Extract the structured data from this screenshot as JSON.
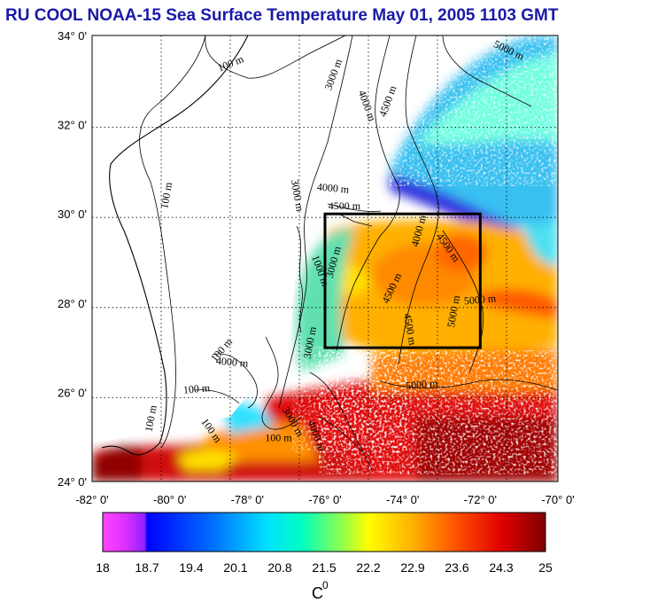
{
  "title": "RU COOL  NOAA-15 Sea Surface Temperature May 01, 2005 1103 GMT",
  "latitude_labels": [
    "34° 0'",
    "32° 0'",
    "30° 0'",
    "28° 0'",
    "26° 0'",
    "24° 0'"
  ],
  "longitude_labels": [
    "-82° 0'",
    "-80° 0'",
    "-78° 0'",
    "-76° 0'",
    "-74° 0'",
    "-72° 0'",
    "-70° 0'"
  ],
  "latitude_values": [
    34,
    32,
    30,
    28,
    26,
    24
  ],
  "longitude_values": [
    -82,
    -80,
    -78,
    -76,
    -74,
    -72,
    -70
  ],
  "contour_labels": [
    {
      "text": "100 m",
      "lon": -78.4,
      "lat": 33.3,
      "rot": -22
    },
    {
      "text": "3000 m",
      "lon": -75.7,
      "lat": 33.1,
      "rot": -70
    },
    {
      "text": "5000 m",
      "lon": -71.3,
      "lat": 33.6,
      "rot": 25
    },
    {
      "text": "4000 m",
      "lon": -75.0,
      "lat": 32.4,
      "rot": 70
    },
    {
      "text": "4500 m",
      "lon": -74.3,
      "lat": 32.5,
      "rot": -70
    },
    {
      "text": "100 m",
      "lon": -80.0,
      "lat": 30.4,
      "rot": -80
    },
    {
      "text": "3000 m",
      "lon": -76.8,
      "lat": 30.4,
      "rot": 80
    },
    {
      "text": "4000 m",
      "lon": -75.8,
      "lat": 30.5,
      "rot": 5
    },
    {
      "text": "4500 m",
      "lon": -75.5,
      "lat": 30.1,
      "rot": 0
    },
    {
      "text": "3000 m",
      "lon": -75.7,
      "lat": 28.9,
      "rot": -75
    },
    {
      "text": "4000 m",
      "lon": -73.5,
      "lat": 29.6,
      "rot": -75
    },
    {
      "text": "4500 m",
      "lon": -72.9,
      "lat": 29.2,
      "rot": 55
    },
    {
      "text": "4500 m",
      "lon": -74.2,
      "lat": 28.3,
      "rot": -65
    },
    {
      "text": "5000 m",
      "lon": -72.0,
      "lat": 28.0,
      "rot": -5
    },
    {
      "text": "5000 m",
      "lon": -72.6,
      "lat": 27.8,
      "rot": -80
    },
    {
      "text": "4500 m",
      "lon": -73.9,
      "lat": 27.4,
      "rot": 80
    },
    {
      "text": "1000 m",
      "lon": -76.2,
      "lat": 28.7,
      "rot": 70
    },
    {
      "text": "3000 m",
      "lon": -76.3,
      "lat": 27.1,
      "rot": -80
    },
    {
      "text": "100 m",
      "lon": -78.6,
      "lat": 26.9,
      "rot": -50
    },
    {
      "text": "4000 m",
      "lon": -78.4,
      "lat": 26.6,
      "rot": 5
    },
    {
      "text": "100 m",
      "lon": -79.3,
      "lat": 26.0,
      "rot": -5
    },
    {
      "text": "100 m",
      "lon": -80.4,
      "lat": 25.4,
      "rot": -80
    },
    {
      "text": "5000 m",
      "lon": -73.5,
      "lat": 26.1,
      "rot": -5
    },
    {
      "text": "100 m",
      "lon": -79.0,
      "lat": 25.1,
      "rot": 55
    },
    {
      "text": "100 m",
      "lon": -77.2,
      "lat": 24.9,
      "rot": 0
    },
    {
      "text": "3000 m",
      "lon": -76.9,
      "lat": 25.3,
      "rot": 60
    },
    {
      "text": "4000 m",
      "lon": -76.3,
      "lat": 25.0,
      "rot": 70
    }
  ],
  "box_region": {
    "lon_min": -76,
    "lon_max": -72,
    "lat_min": 27,
    "lat_max": 30
  },
  "colorbar": {
    "ticks": [
      "18",
      "18.7",
      "19.4",
      "20.1",
      "20.8",
      "21.5",
      "22.2",
      "22.9",
      "23.6",
      "24.3",
      "25"
    ],
    "unit": "C",
    "unit_sup": "0",
    "colors": [
      "#ff44ff",
      "#c020ff",
      "#0000ff",
      "#0060ff",
      "#00c0ff",
      "#00ffe0",
      "#80ff80",
      "#ffff00",
      "#ffa000",
      "#ff5000",
      "#e00000",
      "#800000"
    ]
  }
}
